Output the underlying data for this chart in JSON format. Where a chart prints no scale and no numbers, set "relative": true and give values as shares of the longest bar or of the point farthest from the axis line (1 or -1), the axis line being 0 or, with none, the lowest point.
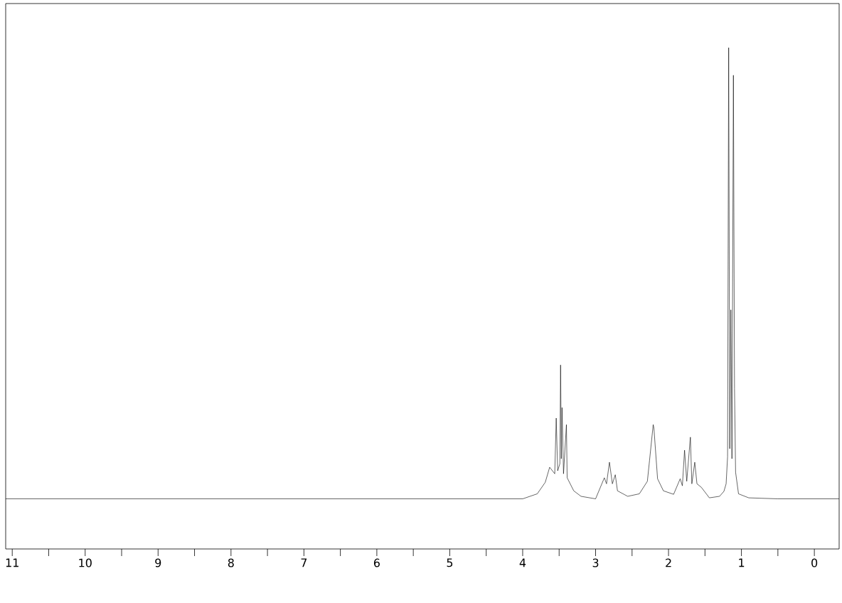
{
  "chart_data": {
    "type": "line",
    "relative": true,
    "color": "#000000",
    "line_style": "solid",
    "marker": "none",
    "tick_labels": "x",
    "xlim": [
      11.09,
      -0.34
    ],
    "xticks": [
      11,
      {
        "value": 10.5,
        "label": null
      },
      10,
      {
        "value": 9.5,
        "label": null
      },
      9,
      {
        "value": 8.5,
        "label": null
      },
      8,
      {
        "value": 7.5,
        "label": null
      },
      7,
      {
        "value": 6.5,
        "label": null
      },
      6,
      {
        "value": 5.5,
        "label": null
      },
      5,
      {
        "value": 4.5,
        "label": null
      },
      4,
      {
        "value": 3.5,
        "label": null
      },
      3,
      {
        "value": 2.5,
        "label": null
      },
      2,
      {
        "value": 1.5,
        "label": null
      },
      1,
      {
        "value": 0.5,
        "label": null
      },
      0
    ],
    "x": [
      11.09,
      10.5,
      10.0,
      9.5,
      9.0,
      8.5,
      8.0,
      7.5,
      7.0,
      6.5,
      6.0,
      5.5,
      5.0,
      4.5,
      4.0,
      3.8,
      3.69,
      3.63,
      3.56,
      3.54,
      3.52,
      3.49,
      3.48,
      3.47,
      3.46,
      3.44,
      3.4,
      3.39,
      3.3,
      3.2,
      3.0,
      2.88,
      2.85,
      2.81,
      2.77,
      2.73,
      2.7,
      2.56,
      2.4,
      2.29,
      2.26,
      2.21,
      2.2,
      2.18,
      2.15,
      2.07,
      1.93,
      1.84,
      1.81,
      1.78,
      1.75,
      1.7,
      1.68,
      1.64,
      1.61,
      1.55,
      1.44,
      1.3,
      1.24,
      1.21,
      1.19,
      1.175,
      1.16,
      1.145,
      1.13,
      1.11,
      1.095,
      1.08,
      1.04,
      0.9,
      0.5,
      0.0,
      -0.34
    ],
    "values": [
      0.1,
      0.1,
      0.1,
      0.1,
      0.1,
      0.1,
      0.1,
      0.1,
      0.1,
      0.1,
      0.1,
      0.1,
      0.1,
      0.1,
      0.1,
      0.11,
      0.133,
      0.163,
      0.15,
      0.261,
      0.156,
      0.17,
      0.367,
      0.18,
      0.282,
      0.15,
      0.248,
      0.142,
      0.116,
      0.105,
      0.1,
      0.142,
      0.13,
      0.173,
      0.13,
      0.148,
      0.116,
      0.105,
      0.11,
      0.135,
      0.177,
      0.248,
      0.241,
      0.2,
      0.14,
      0.116,
      0.109,
      0.14,
      0.126,
      0.197,
      0.135,
      0.223,
      0.13,
      0.173,
      0.13,
      0.123,
      0.102,
      0.105,
      0.115,
      0.13,
      0.184,
      1.0,
      0.2,
      0.477,
      0.18,
      0.945,
      0.32,
      0.153,
      0.11,
      0.102,
      0.1,
      0.1,
      0.1
    ]
  }
}
